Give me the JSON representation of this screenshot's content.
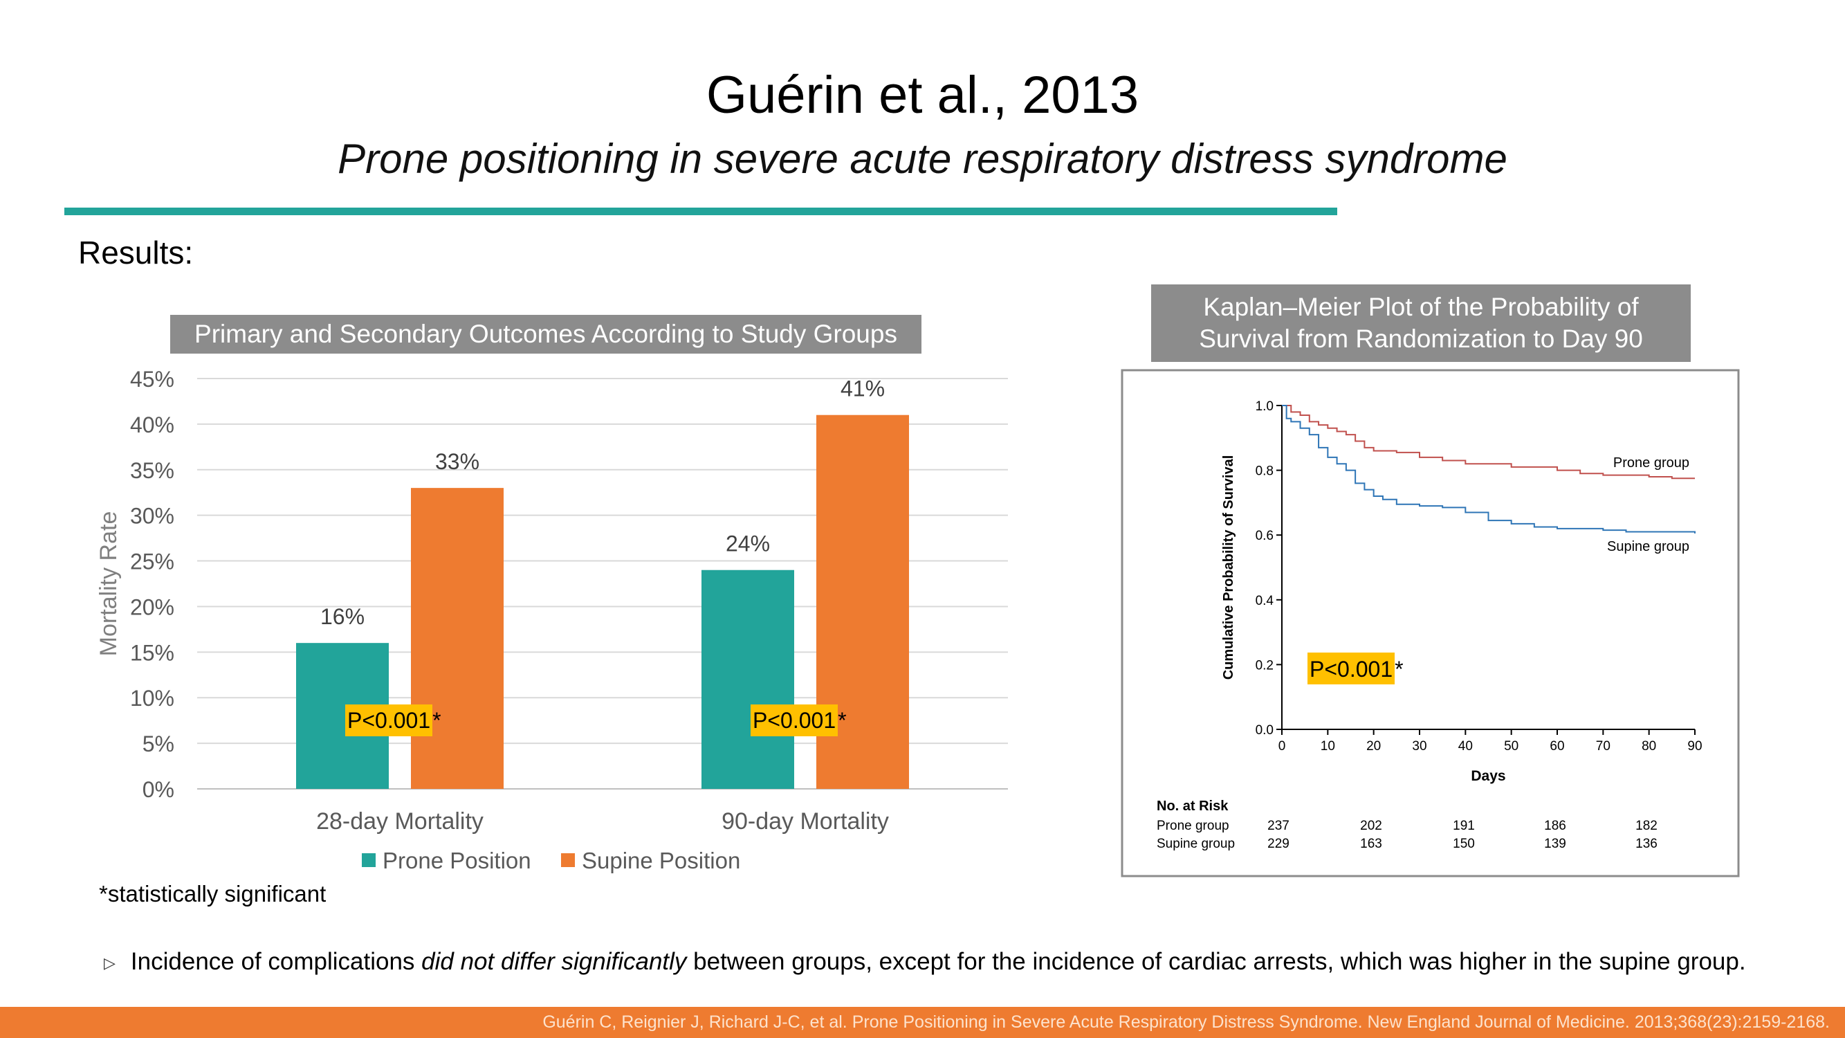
{
  "slide": {
    "title": "Guérin et al., 2013",
    "subtitle": "Prone positioning in severe acute respiratory distress syndrome",
    "section_label": "Results:",
    "significance_note": "*statistically significant",
    "bullet": {
      "before": "Incidence of complications ",
      "emphasis": "did not differ significantly",
      "after": " between groups, except for the incidence of cardiac arrests, which was higher in the supine group."
    },
    "citation": "Guérin C, Reignier J, Richard J-C, et al. Prone Positioning in Severe Acute Respiratory Distress Syndrome. New England Journal of Medicine. 2013;368(23):2159-2168.",
    "colors": {
      "teal": "#22a49a",
      "orange": "#ee7b30",
      "highlight": "#ffc000",
      "gray_box": "#8c8c8c"
    }
  },
  "chart_data": [
    {
      "type": "bar",
      "title": "Primary and Secondary Outcomes According to Study Groups",
      "ylabel": "Mortality Rate",
      "xlabel": "",
      "ylim": [
        0,
        45
      ],
      "yticks": [
        "0%",
        "5%",
        "10%",
        "15%",
        "20%",
        "25%",
        "30%",
        "35%",
        "40%",
        "45%"
      ],
      "categories": [
        "28-day Mortality",
        "90-day Mortality"
      ],
      "series": [
        {
          "name": "Prone Position",
          "color": "#22a49a",
          "values": [
            16,
            24
          ],
          "labels": [
            "16%",
            "24%"
          ]
        },
        {
          "name": "Supine Position",
          "color": "#ee7b30",
          "values": [
            33,
            41
          ],
          "labels": [
            "33%",
            "41%"
          ]
        }
      ],
      "annotations": [
        {
          "category": "28-day Mortality",
          "text": "P<0.001",
          "suffix": "*"
        },
        {
          "category": "90-day Mortality",
          "text": "P<0.001",
          "suffix": "*"
        }
      ],
      "legend_position": "bottom",
      "grid": true
    },
    {
      "type": "line",
      "title": "Kaplan–Meier Plot of the Probability of Survival from Randomization to Day 90",
      "title_lines": [
        "Kaplan–Meier Plot of the Probability of",
        "Survival from Randomization to Day 90"
      ],
      "xlabel": "Days",
      "ylabel": "Cumulative Probability of Survival",
      "xlim": [
        0,
        90
      ],
      "ylim": [
        0,
        1
      ],
      "xticks": [
        "0",
        "10",
        "20",
        "30",
        "40",
        "50",
        "60",
        "70",
        "80",
        "90"
      ],
      "yticks": [
        "0.0",
        "0.2",
        "0.4",
        "0.6",
        "0.8",
        "1.0"
      ],
      "series": [
        {
          "name": "Prone group",
          "color": "#c0504d",
          "x": [
            0,
            2,
            4,
            6,
            8,
            10,
            12,
            14,
            16,
            18,
            20,
            25,
            30,
            35,
            40,
            45,
            50,
            55,
            60,
            65,
            70,
            75,
            80,
            85,
            90
          ],
          "y": [
            1.0,
            0.98,
            0.97,
            0.95,
            0.94,
            0.93,
            0.92,
            0.91,
            0.89,
            0.87,
            0.86,
            0.855,
            0.84,
            0.83,
            0.82,
            0.82,
            0.81,
            0.81,
            0.8,
            0.79,
            0.785,
            0.785,
            0.78,
            0.775,
            0.775
          ]
        },
        {
          "name": "Supine group",
          "color": "#2e75b6",
          "x": [
            0,
            1,
            2,
            4,
            6,
            8,
            10,
            12,
            14,
            16,
            18,
            20,
            22,
            25,
            30,
            35,
            40,
            45,
            50,
            55,
            60,
            65,
            70,
            75,
            80,
            85,
            90
          ],
          "y": [
            1.0,
            0.96,
            0.95,
            0.93,
            0.91,
            0.87,
            0.84,
            0.82,
            0.8,
            0.76,
            0.74,
            0.72,
            0.71,
            0.695,
            0.69,
            0.685,
            0.67,
            0.645,
            0.635,
            0.625,
            0.62,
            0.62,
            0.615,
            0.61,
            0.61,
            0.61,
            0.605
          ]
        }
      ],
      "annotation": {
        "text": "P<0.001",
        "suffix": "*"
      },
      "risk_table": {
        "header": "No. at Risk",
        "rows": [
          {
            "label": "Prone group",
            "values": [
              "237",
              "202",
              "191",
              "186",
              "182"
            ]
          },
          {
            "label": "Supine group",
            "values": [
              "229",
              "163",
              "150",
              "139",
              "136"
            ]
          }
        ]
      }
    }
  ]
}
